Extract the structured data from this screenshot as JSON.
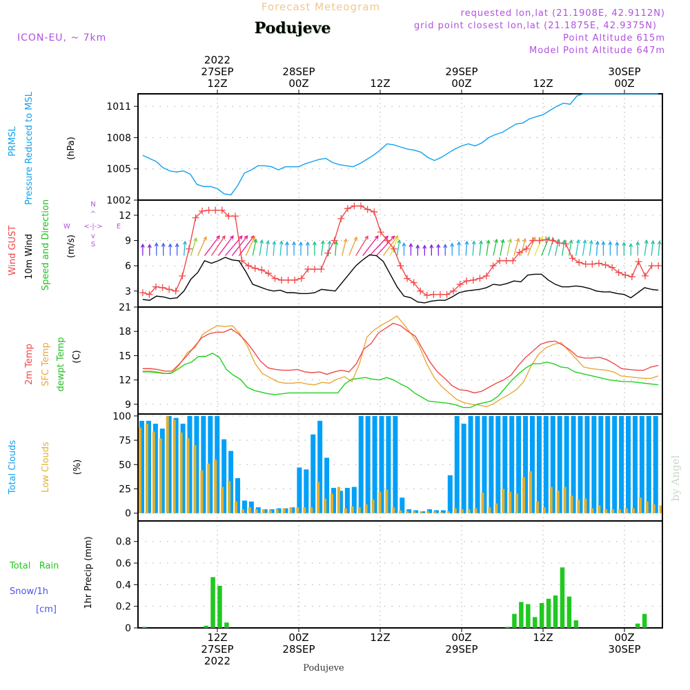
{
  "header": {
    "title": "Forecast Meteogram",
    "location": "Podujeve",
    "model": "ICON-EU, ~ 7km",
    "requested": "requested lon,lat (21.1908E, 42.9112N)",
    "gridpoint": "grid point closest lon,lat (21.1875E, 42.9375N)",
    "point_altitude": "Point Altitude 615m",
    "model_altitude": "Model Point Altitude 647m",
    "footer_location": "Podujeve",
    "credit": "by Angel"
  },
  "colors": {
    "pressure": "#10a0f0",
    "gust": "#f04848",
    "wind10m": "#000000",
    "temp2m": "#f04848",
    "sfctemp": "#e8a838",
    "dewpt": "#20d020",
    "total_clouds": "#00a0f8",
    "low_clouds": "#e0b030",
    "rain": "#20c820",
    "snow": "#5050f0",
    "label_purple": "#b040e0"
  },
  "time_axis": {
    "top_labels": [
      {
        "hour": 12,
        "lines": [
          "2022",
          "27SEP",
          "12Z"
        ]
      },
      {
        "hour": 24,
        "lines": [
          "28SEP",
          "00Z"
        ]
      },
      {
        "hour": 36,
        "lines": [
          "12Z"
        ]
      },
      {
        "hour": 48,
        "lines": [
          "29SEP",
          "00Z"
        ]
      },
      {
        "hour": 60,
        "lines": [
          "12Z"
        ]
      },
      {
        "hour": 72,
        "lines": [
          "30SEP",
          "00Z"
        ]
      }
    ],
    "bottom_labels": [
      {
        "hour": 12,
        "lines": [
          "12Z",
          "27SEP",
          "2022"
        ]
      },
      {
        "hour": 24,
        "lines": [
          "00Z",
          "28SEP"
        ]
      },
      {
        "hour": 36,
        "lines": [
          "12Z"
        ]
      },
      {
        "hour": 48,
        "lines": [
          "00Z",
          "29SEP"
        ]
      },
      {
        "hour": 60,
        "lines": [
          "12Z"
        ]
      },
      {
        "hour": 72,
        "lines": [
          "00Z",
          "30SEP"
        ]
      }
    ],
    "start_hour": 0.3,
    "end_hour": 77.3
  },
  "chart_data": [
    {
      "type": "line",
      "id": "pressure",
      "title": "PRMSL Pressure Reduced to MSL",
      "ylabel_lines": [
        "PRMSL",
        "Pressure Reduced to MSL"
      ],
      "unit": "(hPa)",
      "yticks": [
        1002,
        1005,
        1008,
        1011
      ],
      "ylim": [
        1002,
        1012.2
      ],
      "series": [
        {
          "name": "PRMSL",
          "x": [
            1,
            3,
            4,
            5,
            6,
            7,
            8,
            9,
            10,
            11,
            12,
            13,
            14,
            15,
            16,
            17,
            18,
            19,
            20,
            21,
            22,
            23,
            24,
            25,
            26,
            27,
            28,
            29,
            30,
            31,
            32,
            33,
            34,
            35,
            36,
            37,
            38,
            39,
            40,
            41,
            42,
            43,
            44,
            45,
            46,
            47,
            48,
            49,
            50,
            51,
            52,
            53,
            54,
            55,
            56,
            57,
            58,
            59,
            60,
            61,
            62,
            63,
            64,
            65,
            66,
            67,
            68,
            69,
            70,
            71,
            72,
            73,
            74,
            75,
            76,
            77
          ],
          "values": [
            1006.3,
            1005.7,
            1005.1,
            1004.8,
            1004.7,
            1004.8,
            1004.5,
            1003.5,
            1003.3,
            1003.3,
            1003.1,
            1002.6,
            1002.5,
            1003.4,
            1004.6,
            1004.9,
            1005.3,
            1005.3,
            1005.2,
            1004.9,
            1005.2,
            1005.2,
            1005.2,
            1005.5,
            1005.7,
            1005.9,
            1006.0,
            1005.6,
            1005.4,
            1005.3,
            1005.2,
            1005.5,
            1005.9,
            1006.3,
            1006.8,
            1007.4,
            1007.3,
            1007.1,
            1006.9,
            1006.8,
            1006.6,
            1006.1,
            1005.8,
            1006.1,
            1006.5,
            1006.9,
            1007.2,
            1007.4,
            1007.2,
            1007.5,
            1008.0,
            1008.3,
            1008.5,
            1008.9,
            1009.3,
            1009.4,
            1009.8,
            1010.0,
            1010.2,
            1010.6,
            1011.0,
            1011.3,
            1011.2,
            1012.0,
            1012.3,
            1012.3,
            1012.3,
            1012.3,
            1012.3,
            1012.3,
            1012.3,
            1012.3,
            1012.3,
            1012.3,
            1012.3,
            1012.3
          ]
        }
      ]
    },
    {
      "type": "line",
      "id": "wind",
      "title": "Wind GUST / 10m Wind Speed and Direction",
      "ylabel_lines": [
        "Wind GUST",
        "10m Wind",
        "Speed and Direction"
      ],
      "unit": "(m/s)",
      "compass": {
        "n": "N",
        "s": "S",
        "w": "W",
        "e": "E"
      },
      "yticks": [
        3,
        6,
        9,
        12
      ],
      "ylim": [
        1.1,
        13.8
      ],
      "series": [
        {
          "name": "Wind GUST",
          "values": [
            2.8,
            2.6,
            3.5,
            3.4,
            3.2,
            3.0,
            4.8,
            8.0,
            11.7,
            12.5,
            12.6,
            12.6,
            12.6,
            11.9,
            11.9,
            6.6,
            6.0,
            5.7,
            5.5,
            5.1,
            4.5,
            4.3,
            4.3,
            4.3,
            4.5,
            5.6,
            5.6,
            5.6,
            7.5,
            9.0,
            11.6,
            12.8,
            13.1,
            13.1,
            12.7,
            12.4,
            10.0,
            9.0,
            8.0,
            6.0,
            4.5,
            4.0,
            3.0,
            2.5,
            2.6,
            2.6,
            2.6,
            3.0,
            3.8,
            4.2,
            4.3,
            4.5,
            4.8,
            6.0,
            6.6,
            6.6,
            6.6,
            7.6,
            8.0,
            9.0,
            9.0,
            9.1,
            9.0,
            8.7,
            8.6,
            6.9,
            6.4,
            6.2,
            6.2,
            6.3,
            6.1,
            5.8,
            5.2,
            4.9,
            4.7,
            6.5,
            4.8,
            6.0,
            6.0
          ]
        },
        {
          "name": "10m Wind",
          "values": [
            2.0,
            1.9,
            2.4,
            2.3,
            2.1,
            2.2,
            3.0,
            4.4,
            5.2,
            6.6,
            6.3,
            6.6,
            7.0,
            6.7,
            6.6,
            5.3,
            3.8,
            3.5,
            3.2,
            3.0,
            3.1,
            2.8,
            2.8,
            2.7,
            2.7,
            2.8,
            3.2,
            3.1,
            3.0,
            4.0,
            5.0,
            6.0,
            6.7,
            7.3,
            7.2,
            6.5,
            5.0,
            3.5,
            2.4,
            2.2,
            1.7,
            1.6,
            1.8,
            1.9,
            1.9,
            2.3,
            2.8,
            3.0,
            3.1,
            3.2,
            3.4,
            3.8,
            3.7,
            3.9,
            4.2,
            4.1,
            4.9,
            5.0,
            5.0,
            4.3,
            3.8,
            3.5,
            3.5,
            3.6,
            3.5,
            3.3,
            3.0,
            2.9,
            2.9,
            2.7,
            2.6,
            2.2,
            2.8,
            3.4,
            3.2,
            3.1
          ]
        },
        {
          "name": "10m Wind direction (arrows)",
          "note": "southerly to southwesterly arrows, colored by speed"
        }
      ]
    },
    {
      "type": "line",
      "id": "temperature",
      "title": "2m Temp / SFC Temp / dewpt Temp",
      "ylabel_lines": [
        "2m Temp",
        "SFC Temp",
        "dewpt Temp"
      ],
      "unit": "(C)",
      "yticks": [
        9,
        12,
        15,
        18,
        21
      ],
      "ylim": [
        7.8,
        21
      ],
      "series": [
        {
          "name": "2m Temp",
          "values": [
            13.4,
            13.4,
            13.3,
            13.1,
            13.1,
            14.0,
            15.0,
            16.1,
            17.2,
            17.7,
            17.9,
            17.9,
            18.3,
            17.7,
            16.8,
            15.6,
            14.3,
            13.5,
            13.3,
            13.2,
            13.2,
            13.3,
            13.0,
            12.9,
            13.0,
            12.7,
            13.0,
            13.2,
            13.0,
            14.0,
            15.8,
            16.5,
            17.8,
            18.4,
            19.0,
            18.7,
            18.0,
            17.4,
            15.8,
            14.2,
            13.0,
            12.2,
            11.3,
            10.8,
            10.7,
            10.4,
            10.6,
            11.1,
            11.6,
            12.0,
            12.6,
            13.8,
            14.8,
            15.6,
            16.4,
            16.7,
            16.8,
            16.3,
            15.7,
            14.9,
            14.7,
            14.7,
            14.8,
            14.5,
            14.0,
            13.4,
            13.3,
            13.2,
            13.2,
            13.6,
            13.8
          ]
        },
        {
          "name": "SFC Temp",
          "values": [
            13.1,
            13.1,
            13.0,
            12.8,
            12.9,
            14.0,
            15.4,
            16.0,
            17.6,
            18.2,
            18.7,
            18.6,
            18.7,
            17.7,
            16.2,
            14.1,
            12.8,
            12.3,
            11.8,
            11.6,
            11.6,
            11.7,
            11.5,
            11.4,
            11.7,
            11.6,
            12.1,
            12.4,
            11.8,
            14.0,
            17.3,
            18.2,
            18.8,
            19.3,
            19.9,
            18.8,
            17.6,
            16.2,
            14.0,
            12.3,
            11.2,
            10.4,
            9.6,
            9.2,
            9.0,
            8.9,
            8.7,
            9.1,
            9.7,
            10.2,
            10.8,
            11.8,
            13.8,
            15.2,
            16.0,
            16.4,
            16.6,
            15.6,
            14.6,
            13.6,
            13.4,
            13.3,
            13.2,
            13.0,
            12.5,
            12.4,
            12.3,
            12.2,
            12.2,
            12.5
          ]
        },
        {
          "name": "dewpt Temp",
          "values": [
            13.0,
            13.0,
            12.9,
            12.8,
            12.8,
            13.3,
            13.9,
            14.2,
            14.9,
            14.9,
            15.3,
            14.8,
            13.3,
            12.6,
            12.1,
            11.1,
            10.7,
            10.5,
            10.3,
            10.2,
            10.3,
            10.4,
            10.4,
            10.4,
            10.4,
            10.4,
            10.4,
            10.4,
            10.4,
            11.5,
            12.1,
            12.2,
            12.3,
            12.1,
            12.0,
            12.3,
            12.0,
            11.5,
            11.1,
            10.4,
            9.9,
            9.4,
            9.3,
            9.2,
            9.1,
            8.9,
            8.6,
            8.6,
            9.0,
            9.2,
            9.4,
            10.0,
            11.0,
            12.0,
            12.8,
            13.5,
            14.0,
            14.0,
            14.2,
            14.0,
            13.6,
            13.5,
            13.0,
            12.8,
            12.6,
            12.4,
            12.2,
            12.0,
            11.9,
            11.8,
            11.8,
            11.7,
            11.6,
            11.5,
            11.4
          ]
        }
      ]
    },
    {
      "type": "bar",
      "id": "clouds",
      "title": "Total Clouds / Low Clouds",
      "ylabel_lines": [
        "Total Clouds",
        "Low Clouds"
      ],
      "unit": "(%)",
      "yticks": [
        0,
        25,
        50,
        75,
        100
      ],
      "ylim": [
        -8,
        102
      ],
      "series": [
        {
          "name": "Total Clouds",
          "values": [
            95,
            95,
            92,
            87,
            100,
            98,
            92,
            100,
            100,
            100,
            100,
            100,
            76,
            64,
            36,
            13,
            12,
            6,
            4,
            4,
            5,
            5,
            6,
            47,
            45,
            81,
            95,
            57,
            26,
            23,
            26,
            27,
            100,
            100,
            100,
            100,
            100,
            100,
            16,
            4,
            3,
            2,
            4,
            3,
            3,
            39,
            100,
            92,
            100,
            100,
            100,
            100,
            100,
            100,
            100,
            100,
            100,
            100,
            100,
            100,
            100,
            100,
            100,
            100,
            100,
            100,
            100,
            100,
            100,
            100,
            100,
            100,
            100,
            100,
            100,
            100
          ]
        },
        {
          "name": "Low Clouds",
          "values": [
            88,
            92,
            84,
            77,
            100,
            96,
            83,
            77,
            70,
            44,
            51,
            55,
            27,
            33,
            12,
            4,
            6,
            4,
            4,
            3,
            4,
            5,
            6,
            6,
            6,
            6,
            32,
            15,
            20,
            27,
            5,
            7,
            6,
            9,
            14,
            22,
            24,
            6,
            3,
            2,
            2,
            2,
            2,
            2,
            1,
            2,
            5,
            4,
            4,
            5,
            21,
            6,
            10,
            25,
            22,
            20,
            37,
            43,
            12,
            6,
            27,
            23,
            27,
            18,
            14,
            15,
            5,
            8,
            4,
            4,
            4,
            5,
            5,
            16,
            12,
            9,
            8
          ]
        }
      ]
    },
    {
      "type": "bar",
      "id": "precip",
      "title": "1hr Precip (mm)",
      "ylabel_lines": [
        "1hr Precip (mm)"
      ],
      "side_labels": [
        "Total   Rain",
        "Snow/1h",
        "[cm]"
      ],
      "yticks": [
        0,
        0.2,
        0.4,
        0.6,
        0.8
      ],
      "ytick_labels": [
        "0",
        "0.2",
        "0.4",
        "0.6",
        "0.8"
      ],
      "ylim": [
        0,
        0.99
      ],
      "series": [
        {
          "name": "Total Rain",
          "values": [
            0.01,
            0,
            0,
            0,
            0,
            0,
            0,
            0,
            0,
            0.02,
            0.47,
            0.39,
            0.05,
            0,
            0,
            0,
            0,
            0,
            0,
            0,
            0,
            0,
            0,
            0,
            0,
            0,
            0,
            0,
            0,
            0,
            0,
            0,
            0,
            0,
            0,
            0,
            0,
            0,
            0,
            0,
            0,
            0,
            0,
            0,
            0,
            0,
            0,
            0,
            0,
            0,
            0,
            0,
            0,
            0.01,
            0.13,
            0.24,
            0.22,
            0.1,
            0.23,
            0.27,
            0.3,
            0.56,
            0.29,
            0.07,
            0,
            0,
            0,
            0,
            0,
            0,
            0,
            0,
            0.04,
            0.13,
            0
          ]
        },
        {
          "name": "Snow/1h",
          "values": []
        }
      ]
    }
  ]
}
